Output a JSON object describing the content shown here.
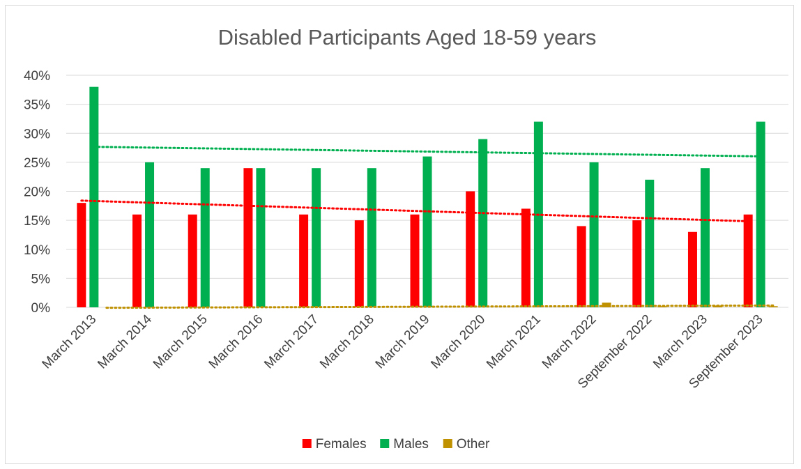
{
  "chart_data": {
    "type": "bar",
    "title": "Disabled Participants Aged 18-59 years",
    "xlabel": "",
    "ylabel": "",
    "categories": [
      "March 2013",
      "March 2014",
      "March 2015",
      "March 2016",
      "March 2017",
      "March 2018",
      "March 2019",
      "March 2020",
      "March 2021",
      "March 2022",
      "September 2022",
      "March 2023",
      "September 2023"
    ],
    "series": [
      {
        "name": "Females",
        "color": "#ff0000",
        "values": [
          18,
          16,
          16,
          24,
          16,
          15,
          16,
          20,
          17,
          14,
          15,
          13,
          16
        ]
      },
      {
        "name": "Males",
        "color": "#00b050",
        "values": [
          38,
          25,
          24,
          24,
          24,
          24,
          26,
          29,
          32,
          25,
          22,
          24,
          32
        ]
      },
      {
        "name": "Other",
        "color": "#bf9000",
        "values": [
          0,
          0,
          0,
          0,
          0,
          0,
          0,
          0,
          0,
          0.8,
          0.2,
          0.3,
          0.2
        ]
      }
    ],
    "ylim": [
      0,
      40
    ],
    "yticks": [
      "0%",
      "5%",
      "10%",
      "15%",
      "20%",
      "25%",
      "30%",
      "35%",
      "40%"
    ],
    "ytick_values": [
      0,
      5,
      10,
      15,
      20,
      25,
      30,
      35,
      40
    ],
    "trendlines": "linear, dotted, one per series",
    "grid": true,
    "legend_position": "bottom"
  }
}
